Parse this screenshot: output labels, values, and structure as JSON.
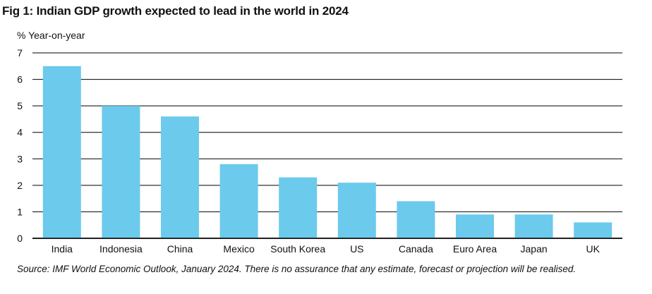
{
  "title": "Fig 1: Indian GDP growth expected to lead in the world in 2024",
  "unit_label": "% Year-on-year",
  "source": "Source: IMF World Economic Outlook, January 2024. There is no assurance that any estimate, forecast or projection will be realised.",
  "colors": {
    "bar": "#6ccaec",
    "grid": "#000000"
  },
  "chart_data": {
    "type": "bar",
    "title": "Fig 1: Indian GDP growth expected to lead in the world in 2024",
    "ylabel": "% Year-on-year",
    "xlabel": "",
    "ylim": [
      0,
      7
    ],
    "yticks": [
      0,
      1,
      2,
      3,
      4,
      5,
      6,
      7
    ],
    "grid": true,
    "categories": [
      "India",
      "Indonesia",
      "China",
      "Mexico",
      "South Korea",
      "US",
      "Canada",
      "Euro Area",
      "Japan",
      "UK"
    ],
    "values": [
      6.5,
      5.0,
      4.6,
      2.8,
      2.3,
      2.1,
      1.4,
      0.9,
      0.9,
      0.6
    ]
  }
}
